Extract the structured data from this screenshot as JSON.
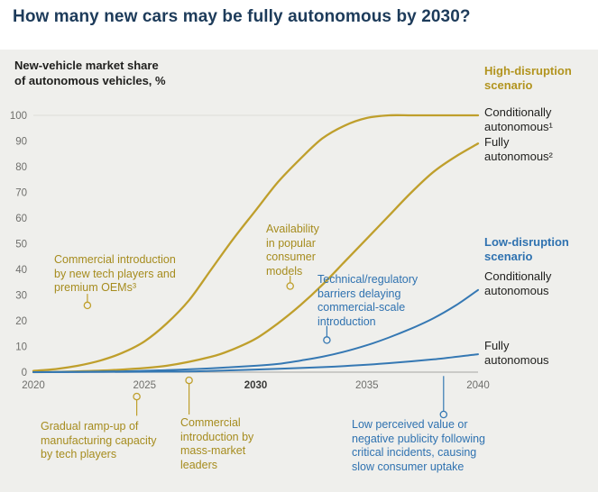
{
  "title": "How many new cars may be fully autonomous by 2030?",
  "panel": {
    "axis_label": "New-vehicle market share\nof autonomous vehicles, %"
  },
  "legend": {
    "high_scenario": "High-disruption\nscenario",
    "high_conditional": "Conditionally\nautonomous¹",
    "high_fully": "Fully\nautonomous²",
    "low_scenario": "Low-disruption\nscenario",
    "low_conditional": "Conditionally\nautonomous",
    "low_fully": "Fully\nautonomous"
  },
  "colors": {
    "gold": "#bf9f2c",
    "gold_text": "#a68c1e",
    "blue": "#3578b3",
    "panel_bg": "#efefec",
    "axis_line": "#b5b5b1",
    "top_line": "#dcdcd8",
    "tick_text": "#6f6f6c",
    "bold_tick_text": "#3a3a38"
  },
  "chart_data": {
    "type": "line",
    "title": "New-vehicle market share of autonomous vehicles, %",
    "xlabel": "",
    "ylabel": "New-vehicle market share of autonomous vehicles, %",
    "x": {
      "min": 2020,
      "max": 2040,
      "ticks": [
        2020,
        2025,
        2030,
        2035,
        2040
      ],
      "bold_tick": 2030
    },
    "y": {
      "min": 0,
      "max": 100,
      "ticks": [
        0,
        10,
        20,
        30,
        40,
        50,
        60,
        70,
        80,
        90,
        100
      ]
    },
    "grid": "top-and-baseline-only",
    "legend_position": "right",
    "series": [
      {
        "name": "High-disruption scenario — Conditionally autonomous",
        "color": "#bf9f2c",
        "width": 2.3,
        "points": [
          [
            2020,
            0.5
          ],
          [
            2021,
            1.2
          ],
          [
            2022,
            2.5
          ],
          [
            2023,
            4.5
          ],
          [
            2024,
            7.5
          ],
          [
            2025,
            12
          ],
          [
            2026,
            19
          ],
          [
            2027,
            28
          ],
          [
            2028,
            40
          ],
          [
            2029,
            52
          ],
          [
            2030,
            63
          ],
          [
            2031,
            74
          ],
          [
            2032,
            83
          ],
          [
            2033,
            91
          ],
          [
            2034,
            96
          ],
          [
            2035,
            99
          ],
          [
            2036,
            100
          ],
          [
            2037,
            100
          ],
          [
            2038,
            100
          ],
          [
            2039,
            100
          ],
          [
            2040,
            100
          ]
        ]
      },
      {
        "name": "High-disruption scenario — Fully autonomous",
        "color": "#bf9f2c",
        "width": 2.3,
        "points": [
          [
            2020,
            0
          ],
          [
            2022,
            0.3
          ],
          [
            2024,
            1
          ],
          [
            2026,
            2.5
          ],
          [
            2028,
            6
          ],
          [
            2029,
            9
          ],
          [
            2030,
            13
          ],
          [
            2031,
            19
          ],
          [
            2032,
            26
          ],
          [
            2033,
            34
          ],
          [
            2034,
            43
          ],
          [
            2035,
            52
          ],
          [
            2036,
            61
          ],
          [
            2037,
            70
          ],
          [
            2038,
            78
          ],
          [
            2039,
            84
          ],
          [
            2040,
            89
          ]
        ]
      },
      {
        "name": "Low-disruption scenario — Conditionally autonomous",
        "color": "#3578b3",
        "width": 2,
        "points": [
          [
            2020,
            0
          ],
          [
            2024,
            0.3
          ],
          [
            2026,
            0.8
          ],
          [
            2028,
            1.5
          ],
          [
            2030,
            2.5
          ],
          [
            2031,
            3.2
          ],
          [
            2032,
            4.5
          ],
          [
            2033,
            6
          ],
          [
            2034,
            8
          ],
          [
            2035,
            10.5
          ],
          [
            2036,
            13.5
          ],
          [
            2037,
            17
          ],
          [
            2038,
            21
          ],
          [
            2039,
            26
          ],
          [
            2040,
            32
          ]
        ]
      },
      {
        "name": "Low-disruption scenario — Fully autonomous",
        "color": "#3578b3",
        "width": 2,
        "points": [
          [
            2020,
            0
          ],
          [
            2026,
            0.2
          ],
          [
            2028,
            0.5
          ],
          [
            2030,
            1
          ],
          [
            2032,
            1.6
          ],
          [
            2034,
            2.4
          ],
          [
            2036,
            3.5
          ],
          [
            2038,
            5
          ],
          [
            2040,
            7
          ]
        ]
      }
    ],
    "callouts": [
      {
        "text": "Commercial introduction\nby new tech players and\npremium OEMs³",
        "color": "#bf9f2c",
        "year": 2022.43,
        "circle_pct": 26,
        "stem_from_pct": 30.5
      },
      {
        "text": "Availability\nin popular\nconsumer\nmodels",
        "color": "#bf9f2c",
        "year": 2031.55,
        "circle_pct": 33.5,
        "stem_from_pct": 37.5
      },
      {
        "text": "Technical/regulatory\nbarriers delaying\ncommercial-scale\nintroduction",
        "color": "#3578b3",
        "year": 2033.2,
        "circle_pct": 12.5,
        "stem_from_pct": 18
      },
      {
        "text": "Gradual ramp-up of\nmanufacturing capacity\nby tech players",
        "color": "#bf9f2c",
        "year": 2024.65,
        "circle_pct": -9.5,
        "stem_from_pct": -17
      },
      {
        "text": "Commercial\nintroduction by\nmass-market\nleaders",
        "color": "#bf9f2c",
        "year": 2027.0,
        "circle_pct": -3.2,
        "stem_from_pct": -16.5
      },
      {
        "text": "Low perceived value or\nnegative publicity following\ncritical incidents, causing\nslow consumer uptake",
        "color": "#3578b3",
        "year": 2038.45,
        "circle_pct": -16.5,
        "stem_from_pct": -1.5
      }
    ]
  }
}
